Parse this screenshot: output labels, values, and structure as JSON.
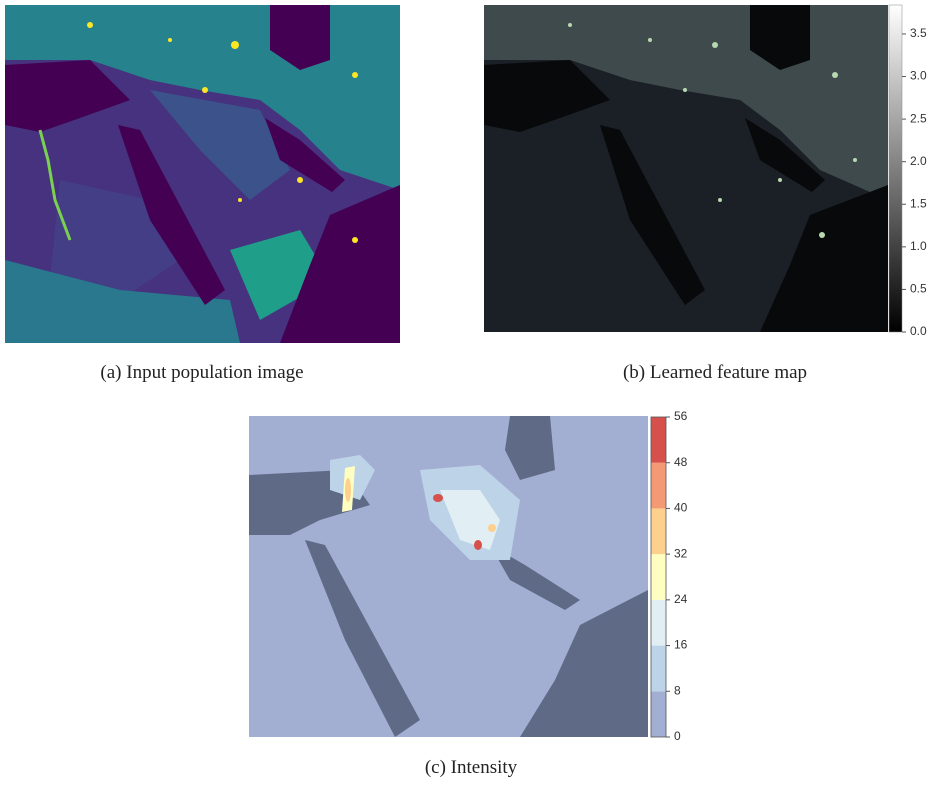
{
  "panels": [
    {
      "caption": "(a) Input population image"
    },
    {
      "caption": "(b) Learned feature map",
      "colorbar": {
        "lim": [
          0,
          3.84
        ],
        "colors": [
          "#000000",
          "#ffffff"
        ],
        "ticks": [
          {
            "value": 0,
            "label": "0.0"
          },
          0.5,
          {
            "value": 1,
            "label": "1.0"
          },
          1.5,
          {
            "value": 2,
            "label": "2.0"
          },
          2.5,
          {
            "value": 3,
            "label": "3.0"
          },
          3.5
        ]
      }
    },
    {
      "caption": "(c) Intensity",
      "colorbar": {
        "lim": [
          0,
          56
        ],
        "colors": [
          "#a3afd2",
          "#bdd3e7",
          "#e1eef3",
          "#fefec0",
          "#fdd08e",
          "#f39a74",
          "#d6504c"
        ],
        "ticks": [
          0,
          8,
          16,
          24,
          32,
          40,
          48,
          56
        ]
      }
    }
  ]
}
